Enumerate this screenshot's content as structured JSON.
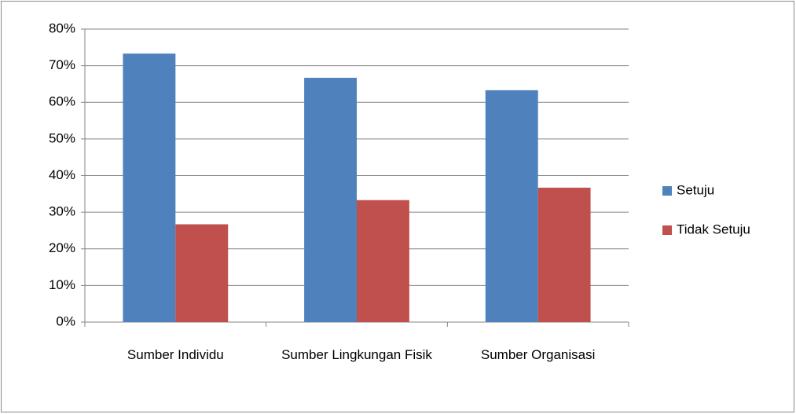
{
  "chart_data": {
    "type": "bar",
    "categories": [
      "Sumber Individu",
      "Sumber Lingkungan Fisik",
      "Sumber Organisasi"
    ],
    "series": [
      {
        "name": "Setuju",
        "color": "#4f81bd",
        "values": [
          73.3,
          66.7,
          63.3
        ]
      },
      {
        "name": "Tidak Setuju",
        "color": "#c0504d",
        "values": [
          26.7,
          33.3,
          36.7
        ]
      }
    ],
    "ylim": [
      0,
      80
    ],
    "yticks": [
      {
        "value": 0,
        "label": "0%"
      },
      {
        "value": 10,
        "label": "10%"
      },
      {
        "value": 20,
        "label": "20%"
      },
      {
        "value": 30,
        "label": "30%"
      },
      {
        "value": 40,
        "label": "40%"
      },
      {
        "value": 50,
        "label": "50%"
      },
      {
        "value": 60,
        "label": "60%"
      },
      {
        "value": 70,
        "label": "70%"
      },
      {
        "value": 80,
        "label": "80%"
      }
    ],
    "grid": true,
    "legend": "right"
  }
}
